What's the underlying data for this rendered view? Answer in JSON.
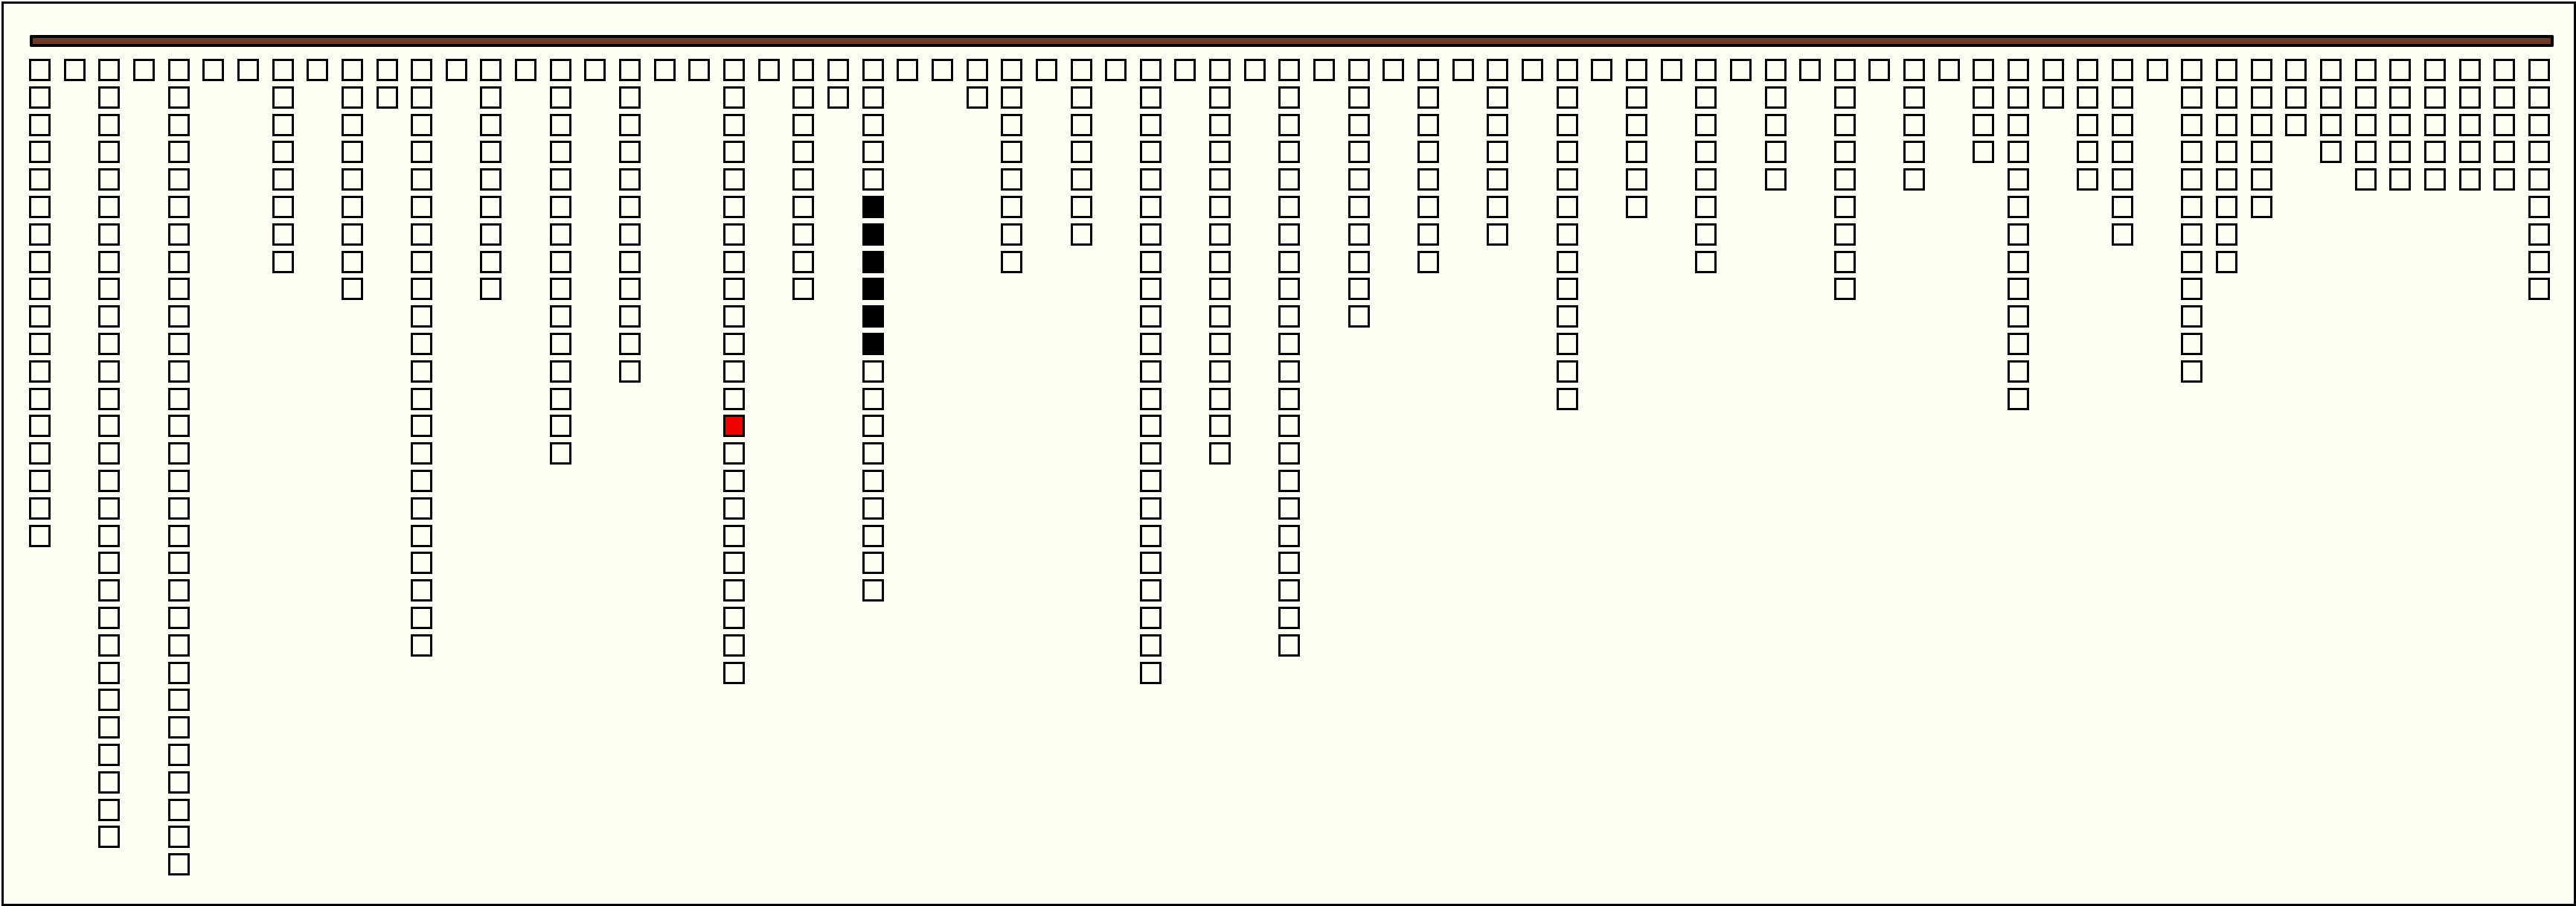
{
  "colors": {
    "background": "#fffff6",
    "bar": "#6b3a24",
    "cell_empty": "#fffff6",
    "cell_filled": "#000000",
    "cell_selected": "#ee0000"
  },
  "columns": [
    18,
    1,
    29,
    1,
    30,
    1,
    1,
    8,
    1,
    9,
    2,
    22,
    1,
    9,
    1,
    15,
    1,
    12,
    1,
    1,
    23,
    1,
    9,
    2,
    20,
    1,
    1,
    2,
    8,
    1,
    7,
    1,
    23,
    1,
    15,
    1,
    22,
    1,
    10,
    1,
    8,
    1,
    7,
    1,
    13,
    1,
    6,
    1,
    8,
    1,
    5,
    1,
    9,
    1,
    5,
    1,
    4,
    13,
    2,
    5,
    7,
    1,
    12,
    8,
    6,
    3,
    4,
    5,
    5,
    5,
    5,
    5,
    9
  ],
  "filled_cells": [
    {
      "column": 25,
      "rows": [
        6,
        7,
        8,
        9,
        10,
        11
      ]
    }
  ],
  "selected_cells": [
    {
      "column": 21,
      "row": 14
    }
  ]
}
